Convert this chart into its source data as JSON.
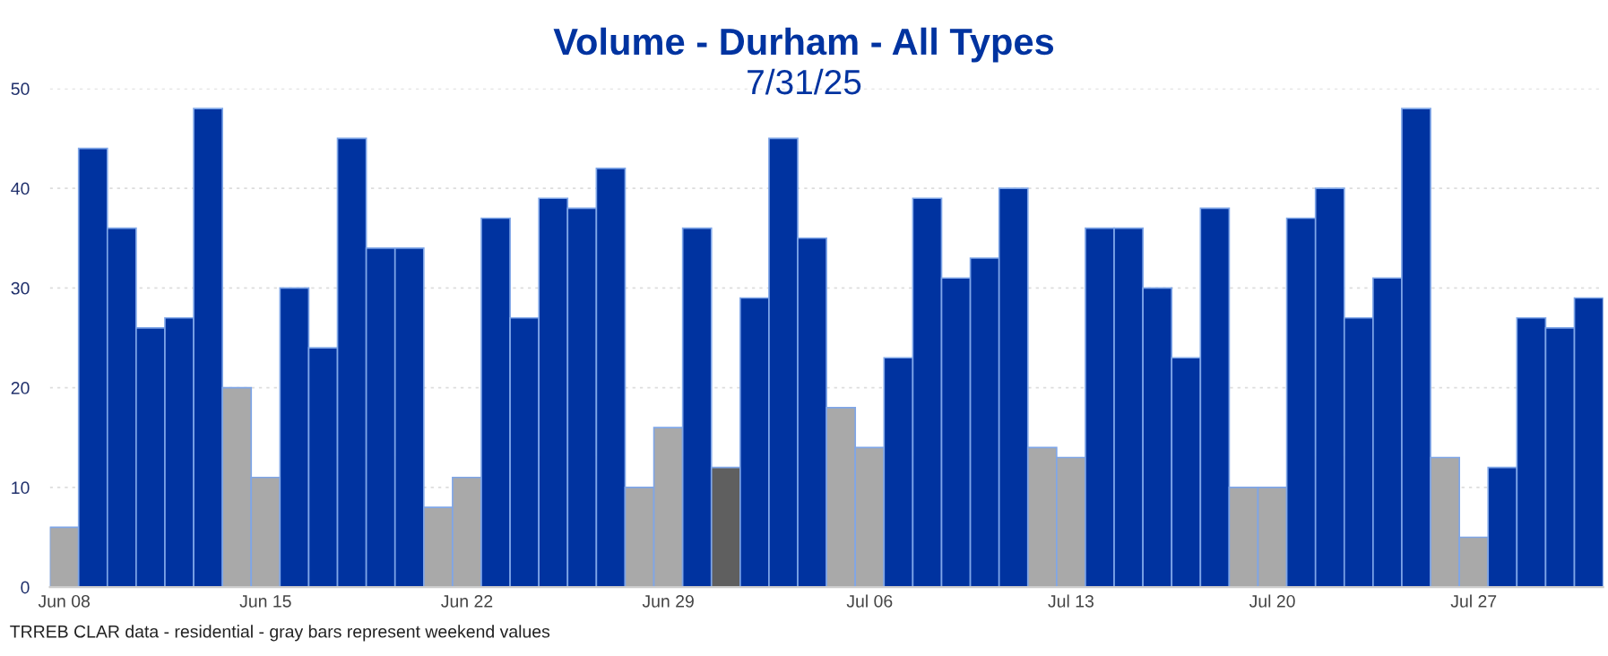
{
  "chart_data": {
    "type": "bar",
    "title": "Volume - Durham - All Types",
    "subtitle": "7/31/25",
    "categories": [
      "Jun 08",
      null,
      null,
      null,
      null,
      null,
      null,
      "Jun 15",
      null,
      null,
      null,
      null,
      null,
      null,
      "Jun 22",
      null,
      null,
      null,
      null,
      null,
      null,
      "Jun 29",
      null,
      null,
      null,
      null,
      null,
      null,
      "Jul 06",
      null,
      null,
      null,
      null,
      null,
      null,
      "Jul 13",
      null,
      null,
      null,
      null,
      null,
      null,
      "Jul 20",
      null,
      null,
      null,
      null,
      null,
      null,
      "Jul 27",
      null,
      null,
      null,
      null
    ],
    "values": [
      6,
      44,
      36,
      26,
      27,
      48,
      20,
      11,
      30,
      24,
      45,
      34,
      34,
      8,
      11,
      37,
      27,
      39,
      38,
      42,
      10,
      16,
      36,
      12,
      29,
      45,
      35,
      18,
      14,
      23,
      39,
      31,
      33,
      40,
      14,
      13,
      36,
      36,
      30,
      23,
      38,
      10,
      10,
      37,
      40,
      27,
      31,
      48,
      13,
      5,
      12,
      27,
      26,
      29
    ],
    "colors": [
      "#a9a9a9",
      "#0033a0",
      "#0033a0",
      "#0033a0",
      "#0033a0",
      "#0033a0",
      "#a9a9a9",
      "#a9a9a9",
      "#0033a0",
      "#0033a0",
      "#0033a0",
      "#0033a0",
      "#0033a0",
      "#a9a9a9",
      "#a9a9a9",
      "#0033a0",
      "#0033a0",
      "#0033a0",
      "#0033a0",
      "#0033a0",
      "#a9a9a9",
      "#a9a9a9",
      "#0033a0",
      "#5f5f5f",
      "#0033a0",
      "#0033a0",
      "#0033a0",
      "#a9a9a9",
      "#a9a9a9",
      "#0033a0",
      "#0033a0",
      "#0033a0",
      "#0033a0",
      "#0033a0",
      "#a9a9a9",
      "#a9a9a9",
      "#0033a0",
      "#0033a0",
      "#0033a0",
      "#0033a0",
      "#0033a0",
      "#a9a9a9",
      "#a9a9a9",
      "#0033a0",
      "#0033a0",
      "#0033a0",
      "#0033a0",
      "#0033a0",
      "#a9a9a9",
      "#a9a9a9",
      "#0033a0",
      "#0033a0",
      "#0033a0",
      "#0033a0"
    ],
    "ylim": [
      0,
      50
    ],
    "yticks": [
      0,
      10,
      20,
      30,
      40,
      50
    ],
    "grid": "y",
    "annotations": [
      "TRREB CLAR data - residential - gray bars represent weekend values"
    ]
  }
}
